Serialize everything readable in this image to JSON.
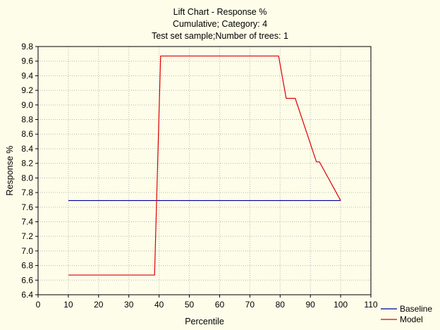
{
  "chart_data": {
    "type": "line",
    "title": [
      "Lift Chart - Response %",
      "Cumulative; Category: 4",
      "Test set sample;Number of trees: 1"
    ],
    "xlabel": "Percentile",
    "ylabel": "Response %",
    "xlim": [
      0,
      110
    ],
    "ylim": [
      6.4,
      9.8
    ],
    "xticks": [
      0,
      10,
      20,
      30,
      40,
      50,
      60,
      70,
      80,
      90,
      100,
      110
    ],
    "yticks": [
      6.4,
      6.6,
      6.8,
      7.0,
      7.2,
      7.4,
      7.6,
      7.8,
      8.0,
      8.2,
      8.4,
      8.6,
      8.8,
      9.0,
      9.2,
      9.4,
      9.6,
      9.8
    ],
    "grid": true,
    "legend_position": "bottom-right",
    "series": [
      {
        "name": "Baseline",
        "color": "#0000a0",
        "x": [
          10,
          100
        ],
        "y": [
          7.69,
          7.69
        ]
      },
      {
        "name": "Model",
        "color": "#e00000",
        "x": [
          10,
          38.5,
          40.5,
          79.5,
          82,
          85,
          92,
          93,
          100
        ],
        "y": [
          6.67,
          6.67,
          9.67,
          9.67,
          9.09,
          9.09,
          8.22,
          8.22,
          7.69
        ]
      }
    ]
  }
}
